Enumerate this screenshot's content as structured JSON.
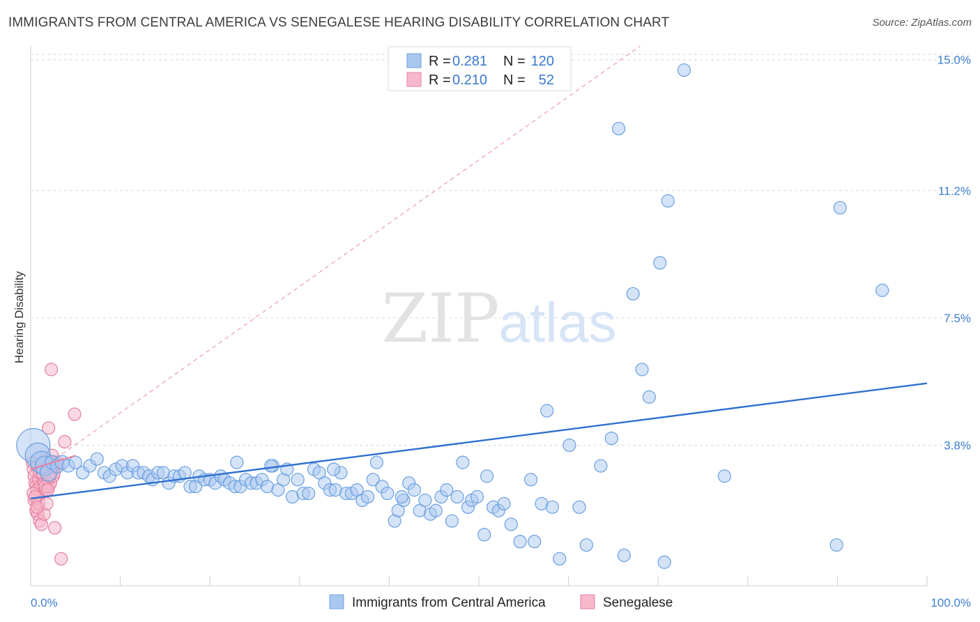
{
  "title": "IMMIGRANTS FROM CENTRAL AMERICA VS SENEGALESE HEARING DISABILITY CORRELATION CHART",
  "source": "Source: ZipAtlas.com",
  "watermark": {
    "zip": "ZIP",
    "atlas": "atlas"
  },
  "colors": {
    "blue_fill": "#a9c8f0",
    "blue_stroke": "#6a9fe0",
    "blue_line": "#2f6fcf",
    "pink_fill": "#f6b8cb",
    "pink_stroke": "#e57fa0",
    "pink_line": "#e87fa0",
    "grid": "#d8d8d8",
    "label": "#3d7fd0"
  },
  "legend": {
    "rows": [
      {
        "r_label": "R = ",
        "r_value": "0.281",
        "n_label": "N = ",
        "n_value": "120"
      },
      {
        "r_label": "R = ",
        "r_value": "0.210",
        "n_label": "N = ",
        "n_value": "52"
      }
    ]
  },
  "chart_data": {
    "type": "scatter",
    "title": "IMMIGRANTS FROM CENTRAL AMERICA VS SENEGALESE HEARING DISABILITY CORRELATION CHART",
    "xlabel": "",
    "ylabel": "Hearing Disability",
    "x_ticks": [
      "0.0%",
      "100.0%"
    ],
    "y_ticks": [
      "3.8%",
      "7.5%",
      "11.2%",
      "15.0%"
    ],
    "y_tick_values": [
      3.8,
      7.5,
      11.2,
      15.0
    ],
    "xlim": [
      0,
      100
    ],
    "ylim": [
      0,
      15.4
    ],
    "grid": true,
    "legend_placement": "top-center",
    "series": [
      {
        "name": "Immigrants from Central America",
        "R": 0.281,
        "N": 120,
        "trend": {
          "x0": 0,
          "y0": 2.25,
          "x1": 100,
          "y1": 5.6
        },
        "points": [
          [
            0.3,
            3.8,
            24
          ],
          [
            0.8,
            3.5,
            18
          ],
          [
            1.2,
            3.3,
            16
          ],
          [
            1.6,
            3.2,
            14
          ],
          [
            2.0,
            3.0,
            12
          ],
          [
            2.4,
            3.3,
            10
          ],
          [
            3.0,
            3.2,
            10
          ],
          [
            3.5,
            3.3,
            10
          ],
          [
            4.2,
            3.2,
            9
          ],
          [
            5.0,
            3.3,
            9
          ],
          [
            5.8,
            3.0,
            9
          ],
          [
            6.6,
            3.2,
            9
          ],
          [
            7.4,
            3.4,
            9
          ],
          [
            8.2,
            3.0,
            9
          ],
          [
            8.8,
            2.9,
            9
          ],
          [
            9.5,
            3.1,
            9
          ],
          [
            10.2,
            3.2,
            9
          ],
          [
            10.8,
            3.0,
            9
          ],
          [
            11.4,
            3.2,
            9
          ],
          [
            12.0,
            3.0,
            9
          ],
          [
            12.6,
            3.0,
            9
          ],
          [
            13.2,
            2.9,
            9
          ],
          [
            13.6,
            2.8,
            9
          ],
          [
            14.2,
            3.0,
            9
          ],
          [
            14.8,
            3.0,
            9
          ],
          [
            15.4,
            2.7,
            9
          ],
          [
            16.0,
            2.9,
            9
          ],
          [
            16.6,
            2.9,
            9
          ],
          [
            17.2,
            3.0,
            9
          ],
          [
            17.8,
            2.6,
            9
          ],
          [
            18.4,
            2.6,
            9
          ],
          [
            18.8,
            2.9,
            9
          ],
          [
            19.4,
            2.8,
            9
          ],
          [
            20.0,
            2.8,
            9
          ],
          [
            20.6,
            2.7,
            9
          ],
          [
            21.2,
            2.9,
            9
          ],
          [
            21.6,
            2.8,
            9
          ],
          [
            22.2,
            2.7,
            9
          ],
          [
            22.8,
            2.6,
            9
          ],
          [
            23.4,
            2.6,
            9
          ],
          [
            24.0,
            2.8,
            9
          ],
          [
            24.6,
            2.7,
            9
          ],
          [
            25.2,
            2.7,
            9
          ],
          [
            25.8,
            2.8,
            9
          ],
          [
            26.4,
            2.6,
            9
          ],
          [
            27.0,
            3.2,
            9
          ],
          [
            27.6,
            2.5,
            9
          ],
          [
            28.2,
            2.8,
            9
          ],
          [
            28.6,
            3.1,
            9
          ],
          [
            29.2,
            2.3,
            9
          ],
          [
            29.8,
            2.8,
            9
          ],
          [
            30.4,
            2.4,
            9
          ],
          [
            31.0,
            2.4,
            9
          ],
          [
            31.6,
            3.1,
            9
          ],
          [
            32.2,
            3.0,
            9
          ],
          [
            32.8,
            2.7,
            9
          ],
          [
            33.4,
            2.5,
            9
          ],
          [
            34.0,
            2.5,
            9
          ],
          [
            34.6,
            3.0,
            9
          ],
          [
            35.2,
            2.4,
            9
          ],
          [
            35.8,
            2.4,
            9
          ],
          [
            36.4,
            2.5,
            9
          ],
          [
            37.0,
            2.2,
            9
          ],
          [
            37.6,
            2.3,
            9
          ],
          [
            38.2,
            2.8,
            9
          ],
          [
            38.6,
            3.3,
            9
          ],
          [
            39.2,
            2.6,
            9
          ],
          [
            39.8,
            2.4,
            9
          ],
          [
            40.6,
            1.6,
            9
          ],
          [
            41.0,
            1.9,
            9
          ],
          [
            41.6,
            2.2,
            9
          ],
          [
            42.2,
            2.7,
            9
          ],
          [
            42.8,
            2.5,
            9
          ],
          [
            43.4,
            1.9,
            9
          ],
          [
            44.0,
            2.2,
            9
          ],
          [
            44.6,
            1.8,
            9
          ],
          [
            45.2,
            1.9,
            9
          ],
          [
            45.8,
            2.3,
            9
          ],
          [
            46.4,
            2.5,
            9
          ],
          [
            47.0,
            1.6,
            9
          ],
          [
            47.6,
            2.3,
            9
          ],
          [
            48.2,
            3.3,
            9
          ],
          [
            48.8,
            2.0,
            9
          ],
          [
            49.2,
            2.2,
            9
          ],
          [
            49.8,
            2.3,
            9
          ],
          [
            50.6,
            1.2,
            9
          ],
          [
            50.9,
            2.9,
            9
          ],
          [
            51.6,
            2.0,
            9
          ],
          [
            52.2,
            1.9,
            9
          ],
          [
            52.8,
            2.1,
            9
          ],
          [
            53.6,
            1.5,
            9
          ],
          [
            54.6,
            1.0,
            9
          ],
          [
            55.8,
            2.8,
            9
          ],
          [
            56.2,
            1.0,
            9
          ],
          [
            57.0,
            2.1,
            9
          ],
          [
            57.6,
            4.8,
            9
          ],
          [
            58.2,
            2.0,
            9
          ],
          [
            59.0,
            0.5,
            9
          ],
          [
            60.1,
            3.8,
            9
          ],
          [
            61.2,
            2.0,
            9
          ],
          [
            62.0,
            0.9,
            9
          ],
          [
            63.6,
            3.2,
            9
          ],
          [
            64.8,
            4.0,
            9
          ],
          [
            65.6,
            13.0,
            9
          ],
          [
            66.2,
            0.6,
            9
          ],
          [
            67.2,
            8.2,
            9
          ],
          [
            68.2,
            6.0,
            9
          ],
          [
            69.0,
            5.2,
            9
          ],
          [
            70.2,
            9.1,
            9
          ],
          [
            70.7,
            0.4,
            9
          ],
          [
            71.1,
            10.9,
            9
          ],
          [
            72.9,
            14.7,
            9
          ],
          [
            77.4,
            2.9,
            9
          ],
          [
            89.9,
            0.9,
            9
          ],
          [
            90.3,
            10.7,
            9
          ],
          [
            95.0,
            8.3,
            9
          ],
          [
            26.8,
            3.2,
            9
          ],
          [
            23.0,
            3.3,
            9
          ],
          [
            33.8,
            3.1,
            9
          ],
          [
            41.4,
            2.3,
            9
          ]
        ]
      },
      {
        "name": "Senegalese",
        "R": 0.21,
        "N": 52,
        "trend": {
          "x0": 0,
          "y0": 3.1,
          "x1": 5,
          "y1": 3.5
        },
        "dash_trend": {
          "x0": 0,
          "y0": 2.9,
          "x1": 68,
          "y1": 15.4
        },
        "points": [
          [
            0.2,
            3.3,
            9
          ],
          [
            0.3,
            3.1,
            9
          ],
          [
            0.4,
            2.9,
            9
          ],
          [
            0.5,
            2.7,
            9
          ],
          [
            0.6,
            2.6,
            9
          ],
          [
            0.7,
            2.5,
            9
          ],
          [
            0.8,
            3.2,
            9
          ],
          [
            0.9,
            2.8,
            9
          ],
          [
            1.0,
            3.0,
            9
          ],
          [
            1.1,
            2.6,
            9
          ],
          [
            1.2,
            2.4,
            9
          ],
          [
            1.3,
            3.3,
            9
          ],
          [
            1.4,
            2.9,
            9
          ],
          [
            1.5,
            2.7,
            9
          ],
          [
            1.6,
            3.1,
            9
          ],
          [
            1.7,
            2.5,
            9
          ],
          [
            1.8,
            3.2,
            9
          ],
          [
            1.9,
            2.8,
            9
          ],
          [
            2.0,
            2.6,
            9
          ],
          [
            2.1,
            3.0,
            9
          ],
          [
            2.2,
            2.7,
            9
          ],
          [
            2.3,
            3.3,
            9
          ],
          [
            2.4,
            3.1,
            9
          ],
          [
            2.5,
            2.9,
            9
          ],
          [
            0.4,
            2.2,
            9
          ],
          [
            0.6,
            1.9,
            9
          ],
          [
            0.8,
            1.8,
            9
          ],
          [
            0.9,
            2.1,
            9
          ],
          [
            1.0,
            1.6,
            9
          ],
          [
            1.2,
            1.5,
            9
          ],
          [
            1.5,
            1.8,
            9
          ],
          [
            1.8,
            2.1,
            9
          ],
          [
            2.0,
            4.3,
            9
          ],
          [
            2.2,
            3.3,
            9
          ],
          [
            2.4,
            3.5,
            9
          ],
          [
            2.6,
            3.0,
            9
          ],
          [
            2.8,
            3.2,
            9
          ],
          [
            3.0,
            3.3,
            9
          ],
          [
            2.3,
            6.0,
            9
          ],
          [
            4.9,
            4.7,
            9
          ],
          [
            3.8,
            3.9,
            9
          ],
          [
            2.7,
            1.4,
            9
          ],
          [
            3.4,
            0.5,
            9
          ],
          [
            0.3,
            2.4,
            9
          ],
          [
            0.5,
            2.3,
            9
          ],
          [
            0.7,
            2.0,
            9
          ],
          [
            1.1,
            3.4,
            9
          ],
          [
            1.3,
            3.0,
            9
          ],
          [
            1.6,
            2.6,
            9
          ],
          [
            1.9,
            2.5,
            9
          ],
          [
            2.1,
            2.9,
            9
          ],
          [
            2.5,
            3.2,
            9
          ]
        ]
      }
    ]
  },
  "bottom_legend": [
    {
      "label": "Immigrants from Central America"
    },
    {
      "label": "Senegalese"
    }
  ]
}
